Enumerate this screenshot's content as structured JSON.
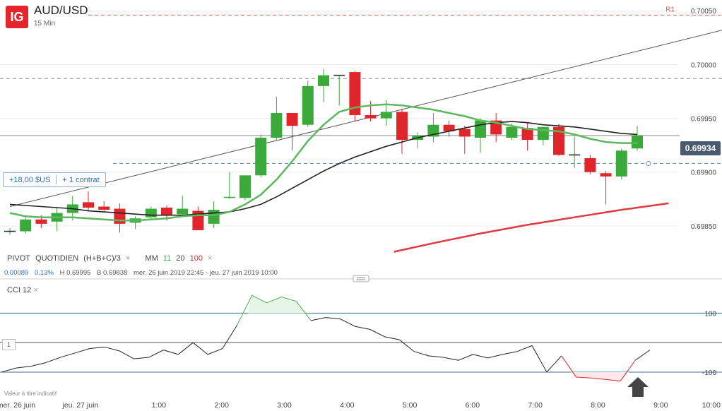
{
  "header": {
    "brand": "IG",
    "symbol": "AUD/USD",
    "timeframe": "15 Min"
  },
  "position": {
    "pnl": "+18,00 $US",
    "contracts": "+ 1 contrat"
  },
  "current_price": "0.69934",
  "indicator_legend": {
    "pivot_label": "PIVOT",
    "pivot_type": "QUOTIDIEN",
    "pivot_formula": "(H+B+C)/3",
    "pivot_close": "×",
    "ma_label": "MM",
    "ma_periods": [
      "11",
      "20",
      "100"
    ],
    "ma_close": "×"
  },
  "stats": {
    "change": "0.00089",
    "change_pct": "0.13%",
    "high": "H 0.69995",
    "low": "B 0.69838",
    "range": "mer. 26 juin 2019 22:45 - jeu. 27 juin 2019 10:00"
  },
  "cci": {
    "title": "CCI",
    "period": "12",
    "close": "×",
    "box_label": "1"
  },
  "disclaimer": "Valeur à titre indicatif",
  "colors": {
    "bull": "#3aaa3a",
    "bear": "#e0252b",
    "ma11": "#5cb85c",
    "ma20": "#222222",
    "ma100": "#e03a3e",
    "accent": "#2a6ebb"
  },
  "chart_data": {
    "type": "candlestick",
    "price_ylim": [
      0.69825,
      0.7006
    ],
    "price_ticks": [
      "0.70050",
      "0.70000",
      "0.69950",
      "0.69900",
      "0.69850"
    ],
    "pivot_levels": [
      {
        "name": "R1",
        "value": 0.70046
      },
      {
        "name": "",
        "value": 0.69987
      }
    ],
    "position_level": 0.69908,
    "trendline": [
      [
        0,
        0.69868
      ],
      [
        45.7,
        0.70033
      ]
    ],
    "candles": [
      [
        0.69845,
        0.69848,
        0.69842,
        0.69845
      ],
      [
        0.69845,
        0.69858,
        0.69843,
        0.69856
      ],
      [
        0.69856,
        0.6986,
        0.69848,
        0.69852
      ],
      [
        0.69854,
        0.69867,
        0.69845,
        0.69862
      ],
      [
        0.69862,
        0.69878,
        0.69855,
        0.6987
      ],
      [
        0.69872,
        0.69882,
        0.69864,
        0.69867
      ],
      [
        0.69868,
        0.69873,
        0.69864,
        0.69865
      ],
      [
        0.69866,
        0.69871,
        0.69844,
        0.69852
      ],
      [
        0.69853,
        0.69859,
        0.69847,
        0.69857
      ],
      [
        0.69858,
        0.69868,
        0.69855,
        0.69866
      ],
      [
        0.69867,
        0.69869,
        0.69855,
        0.6986
      ],
      [
        0.69861,
        0.69878,
        0.6986,
        0.69866
      ],
      [
        0.69864,
        0.69868,
        0.69846,
        0.69846
      ],
      [
        0.69852,
        0.69873,
        0.69848,
        0.69865
      ],
      [
        0.69876,
        0.699,
        0.69875,
        0.69877
      ],
      [
        0.69876,
        0.69896,
        0.69874,
        0.69897
      ],
      [
        0.69897,
        0.69935,
        0.69895,
        0.69932
      ],
      [
        0.69932,
        0.6997,
        0.6993,
        0.69955
      ],
      [
        0.69955,
        0.69955,
        0.6992,
        0.69943
      ],
      [
        0.69944,
        0.69985,
        0.69942,
        0.6998
      ],
      [
        0.6998,
        0.69996,
        0.69965,
        0.6999
      ],
      [
        0.6999,
        0.6999,
        0.69962,
        0.6999
      ],
      [
        0.69993,
        0.69994,
        0.69947,
        0.69953
      ],
      [
        0.69953,
        0.69966,
        0.69947,
        0.6995
      ],
      [
        0.6995,
        0.69967,
        0.69943,
        0.69956
      ],
      [
        0.69956,
        0.69959,
        0.69917,
        0.6993
      ],
      [
        0.6993,
        0.69937,
        0.69922,
        0.69934
      ],
      [
        0.69933,
        0.69955,
        0.69928,
        0.69944
      ],
      [
        0.69944,
        0.69948,
        0.69933,
        0.69938
      ],
      [
        0.6994,
        0.69943,
        0.69917,
        0.69933
      ],
      [
        0.69932,
        0.6995,
        0.69918,
        0.69948
      ],
      [
        0.69948,
        0.69955,
        0.69928,
        0.69935
      ],
      [
        0.69932,
        0.69945,
        0.6993,
        0.69942
      ],
      [
        0.69941,
        0.69946,
        0.6992,
        0.6993
      ],
      [
        0.6993,
        0.69942,
        0.69925,
        0.69942
      ],
      [
        0.69942,
        0.69945,
        0.69915,
        0.69916
      ],
      [
        0.69916,
        0.69933,
        0.69904,
        0.69916
      ],
      [
        0.69913,
        0.69916,
        0.69898,
        0.699
      ],
      [
        0.69899,
        0.69901,
        0.6987,
        0.69896
      ],
      [
        0.69896,
        0.69922,
        0.69893,
        0.6992
      ],
      [
        0.69922,
        0.69943,
        0.6992,
        0.69934
      ]
    ],
    "ma11": [
      0.69862,
      0.69859,
      0.69858,
      0.69858,
      0.69858,
      0.69857,
      0.69856,
      0.69855,
      0.69855,
      0.69856,
      0.69857,
      0.69859,
      0.6986,
      0.6986,
      0.69863,
      0.6987,
      0.69879,
      0.69893,
      0.6991,
      0.69929,
      0.69944,
      0.69956,
      0.6996,
      0.69962,
      0.69963,
      0.69962,
      0.6996,
      0.69958,
      0.69955,
      0.69952,
      0.69948,
      0.69946,
      0.69943,
      0.6994,
      0.69939,
      0.69938,
      0.69935,
      0.69931,
      0.69928,
      0.69927,
      0.69927
    ],
    "ma20": [
      0.6987,
      0.69869,
      0.69868,
      0.69867,
      0.69866,
      0.69864,
      0.69863,
      0.69862,
      0.69861,
      0.6986,
      0.6986,
      0.6986,
      0.69861,
      0.69862,
      0.69863,
      0.69866,
      0.6987,
      0.69877,
      0.69885,
      0.69893,
      0.69901,
      0.69908,
      0.69914,
      0.69919,
      0.69924,
      0.69928,
      0.69932,
      0.69935,
      0.69938,
      0.69941,
      0.69944,
      0.69946,
      0.69947,
      0.69946,
      0.69944,
      0.69943,
      0.69942,
      0.6994,
      0.69938,
      0.69936,
      0.69935
    ],
    "ma100": [
      [
        24.5,
        0.69826
      ],
      [
        27,
        0.69834
      ],
      [
        30,
        0.69843
      ],
      [
        33,
        0.69851
      ],
      [
        36,
        0.69858
      ],
      [
        39,
        0.69865
      ],
      [
        42,
        0.69871
      ]
    ],
    "cci_ylim": [
      -160,
      180
    ],
    "cci_levels": [
      100,
      0,
      -100
    ],
    "cci_ticks": [
      "100",
      "-100"
    ],
    "cci": [
      -100,
      -86,
      -80,
      -68,
      -50,
      -35,
      -20,
      -15,
      -28,
      -55,
      -50,
      -25,
      -40,
      0,
      -40,
      -20,
      60,
      160,
      135,
      155,
      140,
      75,
      85,
      80,
      55,
      45,
      20,
      10,
      -30,
      -45,
      -50,
      -60,
      -40,
      -52,
      -40,
      -30,
      -10,
      -100,
      -45,
      -117,
      -120,
      -125,
      -130,
      -60,
      -25
    ],
    "x_ticks": [
      {
        "label": "mer. 26 juin",
        "i": -0.5
      },
      {
        "label": "jeu. 27 juin",
        "i": 4.5
      },
      {
        "label": "1:00",
        "i": 9.5
      },
      {
        "label": "2:00",
        "i": 13.5
      },
      {
        "label": "3:00",
        "i": 17.5
      },
      {
        "label": "4:00",
        "i": 21.5
      },
      {
        "label": "5:00",
        "i": 25.5
      },
      {
        "label": "6:00",
        "i": 29.5
      },
      {
        "label": "7:00",
        "i": 33.5
      },
      {
        "label": "8:00",
        "i": 37.5
      },
      {
        "label": "9:00",
        "i": 41.5
      },
      {
        "label": "10:00",
        "i": 45.5
      }
    ]
  }
}
